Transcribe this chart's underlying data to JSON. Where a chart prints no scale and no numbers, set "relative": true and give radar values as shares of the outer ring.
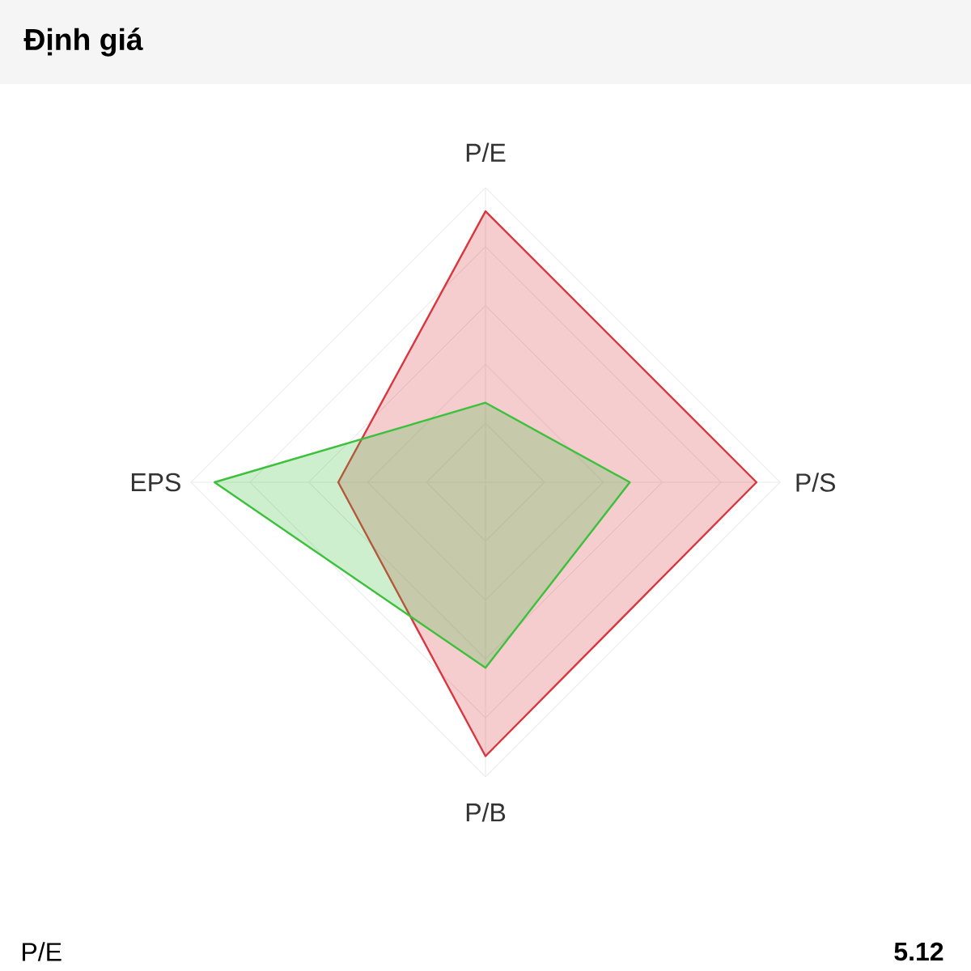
{
  "chart_data": {
    "type": "radar",
    "title": "Định giá",
    "categories": [
      "P/E",
      "P/S",
      "P/B",
      "EPS"
    ],
    "relative": true,
    "series": [
      {
        "color": "#d9363e",
        "values": [
          0.92,
          0.92,
          0.93,
          0.5
        ]
      },
      {
        "color": "#3cc13c",
        "values": [
          0.27,
          0.49,
          0.63,
          0.92
        ]
      }
    ],
    "annotations": [
      "P/E",
      "5.12"
    ]
  }
}
